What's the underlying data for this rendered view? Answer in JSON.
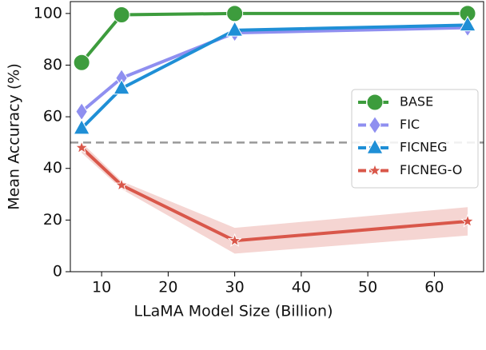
{
  "chart_data": {
    "type": "line",
    "xlabel": "LLaMA Model Size (Billion)",
    "ylabel": "Mean Accuracy (%)",
    "x": [
      7,
      13,
      30,
      65
    ],
    "xlim": [
      5.3,
      67.4
    ],
    "xticks": [
      10,
      20,
      30,
      40,
      50,
      60
    ],
    "ylim": [
      0,
      104.6
    ],
    "yticks": [
      0,
      20,
      40,
      60,
      80,
      100
    ],
    "hline": 50,
    "hline_color": "#999999",
    "legend": "right",
    "series": [
      {
        "name": "BASE",
        "color": "#3d9c3d",
        "marker": "circle",
        "values": [
          81,
          99.5,
          100,
          100
        ]
      },
      {
        "name": "FIC",
        "color": "#8f8ff0",
        "marker": "diamond",
        "values": [
          62,
          75,
          92.5,
          94.5
        ]
      },
      {
        "name": "FICNEG",
        "color": "#1f8fd6",
        "marker": "triangle",
        "values": [
          55.5,
          71,
          93.5,
          95.5
        ]
      },
      {
        "name": "FICNEG-O",
        "color": "#d9574a",
        "marker": "star",
        "values": [
          48,
          33.5,
          12,
          19.5
        ],
        "band_lower": [
          46,
          32,
          7,
          14
        ],
        "band_upper": [
          50,
          35,
          17,
          25
        ]
      }
    ]
  }
}
